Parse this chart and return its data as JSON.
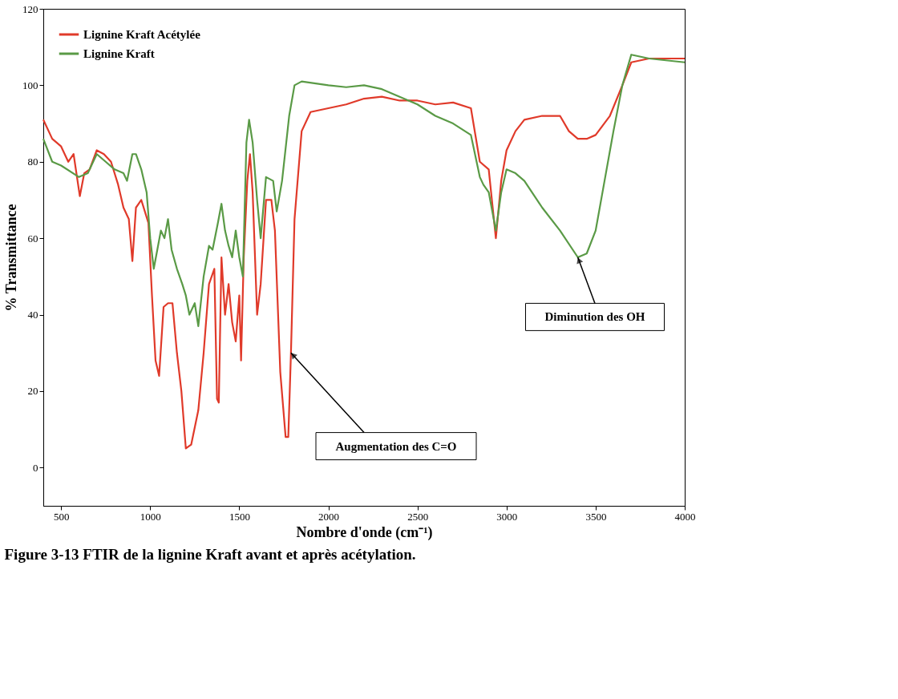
{
  "chart_data": {
    "type": "line",
    "title": "Figure 3-13    FTIR de la lignine Kraft avant et après acétylation.",
    "xlabel": "Nombre d'onde (cm⁻¹)",
    "ylabel": "% Transmittance",
    "xlim": [
      400,
      4000
    ],
    "xticks": [
      500,
      1000,
      1500,
      2000,
      2500,
      3000,
      3500,
      4000
    ],
    "ylim": [
      -10,
      120
    ],
    "yticks": [
      0,
      20,
      40,
      60,
      80,
      100,
      120
    ],
    "grid": false,
    "legend": "top left",
    "marker": "none",
    "line_style": "solid",
    "annotations": [
      {
        "text": "Augmentation des C=O",
        "x": 1790,
        "y": 30
      },
      {
        "text": "Diminution des OH",
        "x": 3400,
        "y": 55
      }
    ],
    "series": [
      {
        "name": "Lignine Kraft Acétylée",
        "color": "#e03a2a",
        "x": [
          400,
          450,
          500,
          540,
          570,
          605,
          630,
          660,
          700,
          740,
          780,
          820,
          850,
          880,
          900,
          920,
          950,
          990,
          1010,
          1030,
          1050,
          1075,
          1100,
          1125,
          1150,
          1175,
          1200,
          1230,
          1270,
          1300,
          1330,
          1360,
          1375,
          1385,
          1400,
          1420,
          1440,
          1460,
          1480,
          1500,
          1510,
          1525,
          1545,
          1560,
          1575,
          1600,
          1620,
          1650,
          1680,
          1700,
          1730,
          1760,
          1775,
          1790,
          1810,
          1850,
          1900,
          2000,
          2100,
          2200,
          2300,
          2400,
          2500,
          2600,
          2700,
          2800,
          2850,
          2900,
          2940,
          2970,
          3000,
          3050,
          3100,
          3200,
          3300,
          3350,
          3400,
          3450,
          3500,
          3580,
          3650,
          3700,
          3800,
          4000
        ],
        "values": [
          91,
          86,
          84,
          80,
          82,
          71,
          77,
          78,
          83,
          82,
          80,
          74,
          68,
          65,
          54,
          68,
          70,
          64,
          45,
          28,
          24,
          42,
          43,
          43,
          30,
          20,
          5,
          6,
          15,
          30,
          48,
          52,
          18,
          17,
          55,
          40,
          48,
          38,
          33,
          45,
          28,
          55,
          75,
          82,
          72,
          40,
          48,
          70,
          70,
          62,
          25,
          8,
          8,
          30,
          65,
          88,
          93,
          94,
          95,
          96.5,
          97,
          96,
          96,
          95,
          95.5,
          94,
          80,
          78,
          60,
          75,
          83,
          88,
          91,
          92,
          92,
          88,
          86,
          86,
          87,
          92,
          100,
          106,
          107,
          107
        ]
      },
      {
        "name": "Lignine Kraft",
        "color": "#5a9a46",
        "x": [
          400,
          450,
          500,
          600,
          650,
          700,
          750,
          800,
          850,
          870,
          900,
          920,
          950,
          980,
          1000,
          1020,
          1040,
          1060,
          1080,
          1100,
          1120,
          1150,
          1180,
          1200,
          1220,
          1250,
          1270,
          1300,
          1330,
          1350,
          1380,
          1400,
          1420,
          1440,
          1460,
          1480,
          1500,
          1520,
          1540,
          1555,
          1575,
          1600,
          1620,
          1650,
          1690,
          1710,
          1740,
          1780,
          1810,
          1850,
          2000,
          2100,
          2200,
          2300,
          2400,
          2500,
          2600,
          2700,
          2800,
          2850,
          2870,
          2900,
          2940,
          2970,
          3000,
          3050,
          3100,
          3200,
          3300,
          3400,
          3450,
          3500,
          3550,
          3600,
          3650,
          3700,
          3800,
          4000
        ],
        "values": [
          86,
          80,
          79,
          76,
          77,
          82,
          80,
          78,
          77,
          75,
          82,
          82,
          78,
          72,
          60,
          52,
          57,
          62,
          60,
          65,
          57,
          52,
          48,
          45,
          40,
          43,
          37,
          50,
          58,
          57,
          64,
          69,
          62,
          58,
          55,
          62,
          55,
          50,
          85,
          91,
          85,
          70,
          60,
          76,
          75,
          67,
          75,
          92,
          100,
          101,
          100,
          99.5,
          100,
          99,
          97,
          95,
          92,
          90,
          87,
          76,
          74,
          72,
          62,
          72,
          78,
          77,
          75,
          68,
          62,
          55,
          56,
          62,
          75,
          88,
          100,
          108,
          107,
          106
        ]
      }
    ]
  }
}
